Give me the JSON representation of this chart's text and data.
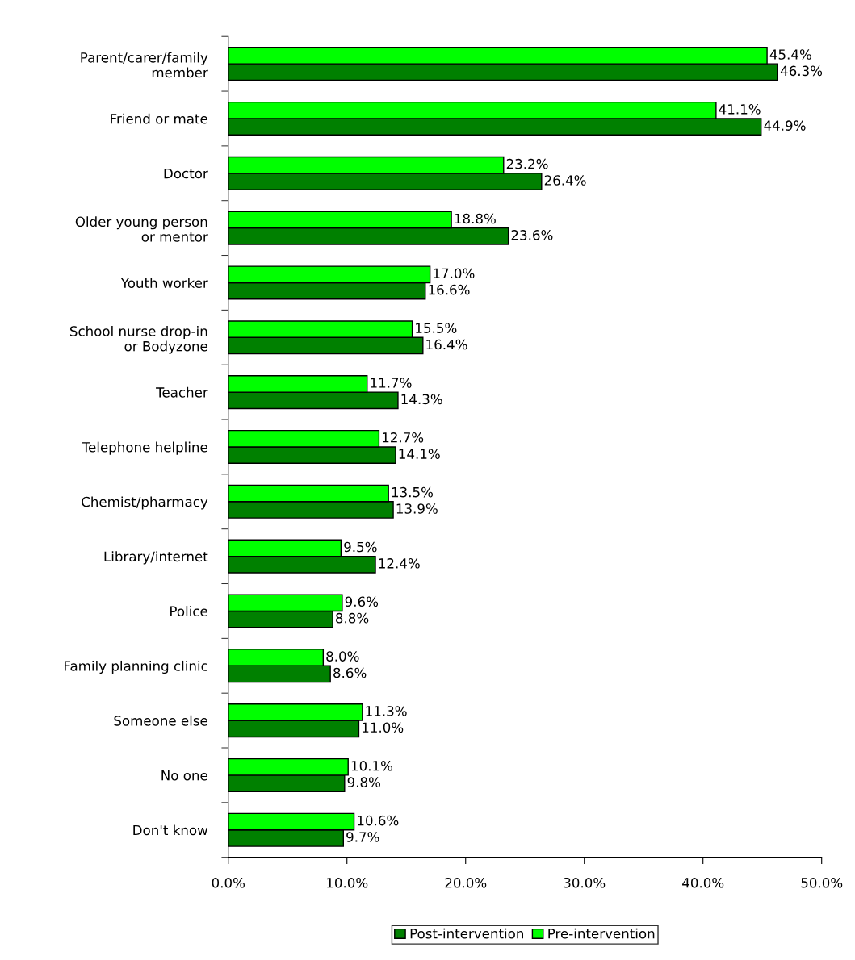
{
  "chart_data": {
    "type": "bar",
    "orientation": "horizontal",
    "categories": [
      "Parent/carer/family\nmember",
      "Friend or mate",
      "Doctor",
      "Older young person\nor mentor",
      "Youth worker",
      "School nurse drop-in\nor Bodyzone",
      "Teacher",
      "Telephone helpline",
      "Chemist/pharmacy",
      "Library/internet",
      "Police",
      "Family planning clinic",
      "Someone else",
      "No one",
      "Don't know"
    ],
    "series": [
      {
        "name": "Post-intervention",
        "color": "#008000",
        "values": [
          46.3,
          44.9,
          26.4,
          23.6,
          16.6,
          16.4,
          14.3,
          14.1,
          13.9,
          12.4,
          8.8,
          8.6,
          11.0,
          9.8,
          9.7
        ],
        "value_labels": [
          "46.3%",
          "44.9%",
          "26.4%",
          "23.6%",
          "16.6%",
          "16.4%",
          "14.3%",
          "14.1%",
          "13.9%",
          "12.4%",
          "8.8%",
          "8.6%",
          "11.0%",
          "9.8%",
          "9.7%"
        ]
      },
      {
        "name": "Pre-intervention",
        "color": "#00ff00",
        "values": [
          45.4,
          41.1,
          23.2,
          18.8,
          17.0,
          15.5,
          11.7,
          12.7,
          13.5,
          9.5,
          9.6,
          8.0,
          11.3,
          10.1,
          10.6
        ],
        "value_labels": [
          "45.4%",
          "41.1%",
          "23.2%",
          "18.8%",
          "17.0%",
          "15.5%",
          "11.7%",
          "12.7%",
          "13.5%",
          "9.5%",
          "9.6%",
          "8.0%",
          "11.3%",
          "10.1%",
          "10.6%"
        ]
      }
    ],
    "xlim": [
      0,
      50
    ],
    "xticks": [
      {
        "value": 0,
        "label": "0.0%"
      },
      {
        "value": 10,
        "label": "10.0%"
      },
      {
        "value": 20,
        "label": "20.0%"
      },
      {
        "value": 30,
        "label": "30.0%"
      },
      {
        "value": 40,
        "label": "40.0%"
      },
      {
        "value": 50,
        "label": "50.0%"
      }
    ],
    "grid": false,
    "legend": "bottom"
  }
}
